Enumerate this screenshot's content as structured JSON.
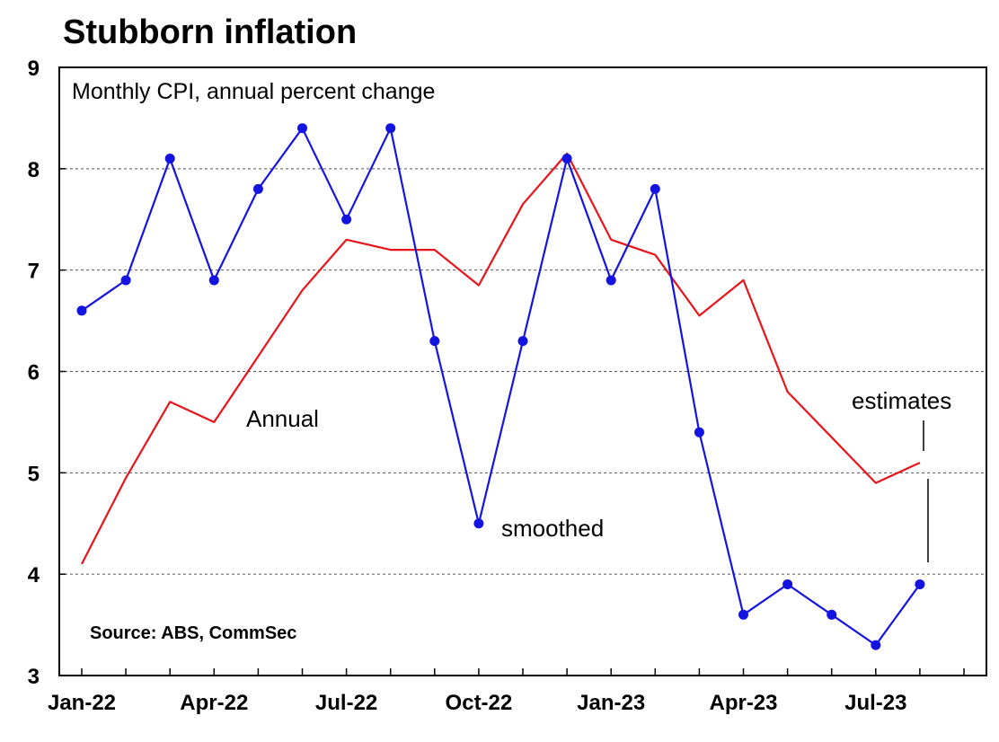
{
  "chart_data": {
    "type": "line",
    "title": "Stubborn inflation",
    "subtitle": "Monthly CPI, annual percent change",
    "source": "Source: ABS, CommSec",
    "annotations": {
      "annual": "Annual",
      "smoothed": "smoothed",
      "estimates": "estimates"
    },
    "ylim": [
      3,
      9
    ],
    "yticks": [
      3,
      4,
      5,
      6,
      7,
      8,
      9
    ],
    "grid": "horizontal dashed",
    "x": [
      "Jan-22",
      "Feb-22",
      "Mar-22",
      "Apr-22",
      "May-22",
      "Jun-22",
      "Jul-22",
      "Aug-22",
      "Sep-22",
      "Oct-22",
      "Nov-22",
      "Dec-22",
      "Jan-23",
      "Feb-23",
      "Mar-23",
      "Apr-23",
      "May-23",
      "Jun-23",
      "Jul-23",
      "Aug-23"
    ],
    "xtick_labels": [
      "Jan-22",
      "Apr-22",
      "Jul-22",
      "Oct-22",
      "Jan-23",
      "Apr-23",
      "Jul-23"
    ],
    "series": [
      {
        "name": "Annual",
        "color": "#e8141b",
        "values": [
          4.1,
          4.95,
          5.7,
          5.5,
          6.15,
          6.8,
          7.3,
          7.2,
          7.2,
          6.85,
          7.65,
          8.15,
          7.3,
          7.15,
          6.55,
          6.9,
          5.8,
          5.35,
          4.9,
          5.1
        ]
      },
      {
        "name": "smoothed",
        "color": "#1414e0",
        "markers": true,
        "values": [
          6.6,
          6.9,
          8.1,
          6.9,
          7.8,
          8.4,
          7.5,
          8.4,
          6.3,
          4.5,
          6.3,
          8.1,
          6.9,
          7.8,
          5.4,
          3.6,
          3.9,
          3.6,
          3.3,
          3.9
        ]
      }
    ]
  }
}
